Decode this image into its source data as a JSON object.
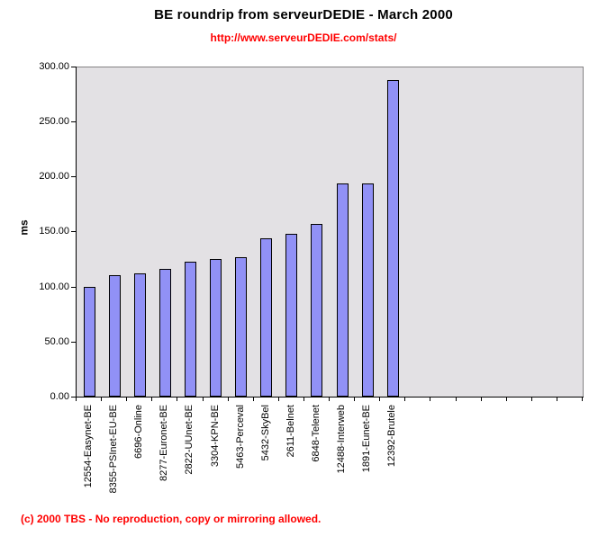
{
  "header": {
    "title": "BE roundrip from serveurDEDIE - March 2000",
    "subtitle_url": "http://www.serveurDEDIE.com/stats/"
  },
  "footer": {
    "copyright": "(c) 2000 TBS - No reproduction, copy or mirroring allowed."
  },
  "colors": {
    "bar_fill": "#9191f6",
    "bar_border": "#000000",
    "plot_bg": "#e3e1e4",
    "plot_border": "#848284",
    "axis_color": "#000000",
    "accent_red": "#ff0000",
    "page_bg": "#ffffff",
    "text_color": "#000000"
  },
  "chart_data": {
    "type": "bar",
    "title": "BE roundrip from serveurDEDIE - March 2000",
    "subtitle": "http://www.serveurDEDIE.com/stats/",
    "xlabel": "",
    "ylabel": "ms",
    "ylim": [
      0,
      300
    ],
    "yticks": [
      0,
      50,
      100,
      150,
      200,
      250,
      300
    ],
    "ytick_labels": [
      "0.00",
      "50.00",
      "100.00",
      "150.00",
      "200.00",
      "250.00",
      "300.00"
    ],
    "categories": [
      "12554-Easynet-BE",
      "8355-PSInet-EU-BE",
      "6696-Online",
      "8277-Euronet-BE",
      "2822-UUnet-BE",
      "3304-KPN-BE",
      "5463-Perceval",
      "5432-SkyBel",
      "2611-Belnet",
      "6848-Telenet",
      "12488-Interweb",
      "1891-Eunet-BE",
      "12392-Brutele"
    ],
    "values": [
      100,
      110,
      112,
      116,
      123,
      125,
      127,
      144,
      148,
      157,
      194,
      194,
      288
    ],
    "total_slots": 20,
    "grid": false,
    "legend": "none",
    "bar_orientation": "vertical",
    "category_label_rotation_deg": 90
  }
}
